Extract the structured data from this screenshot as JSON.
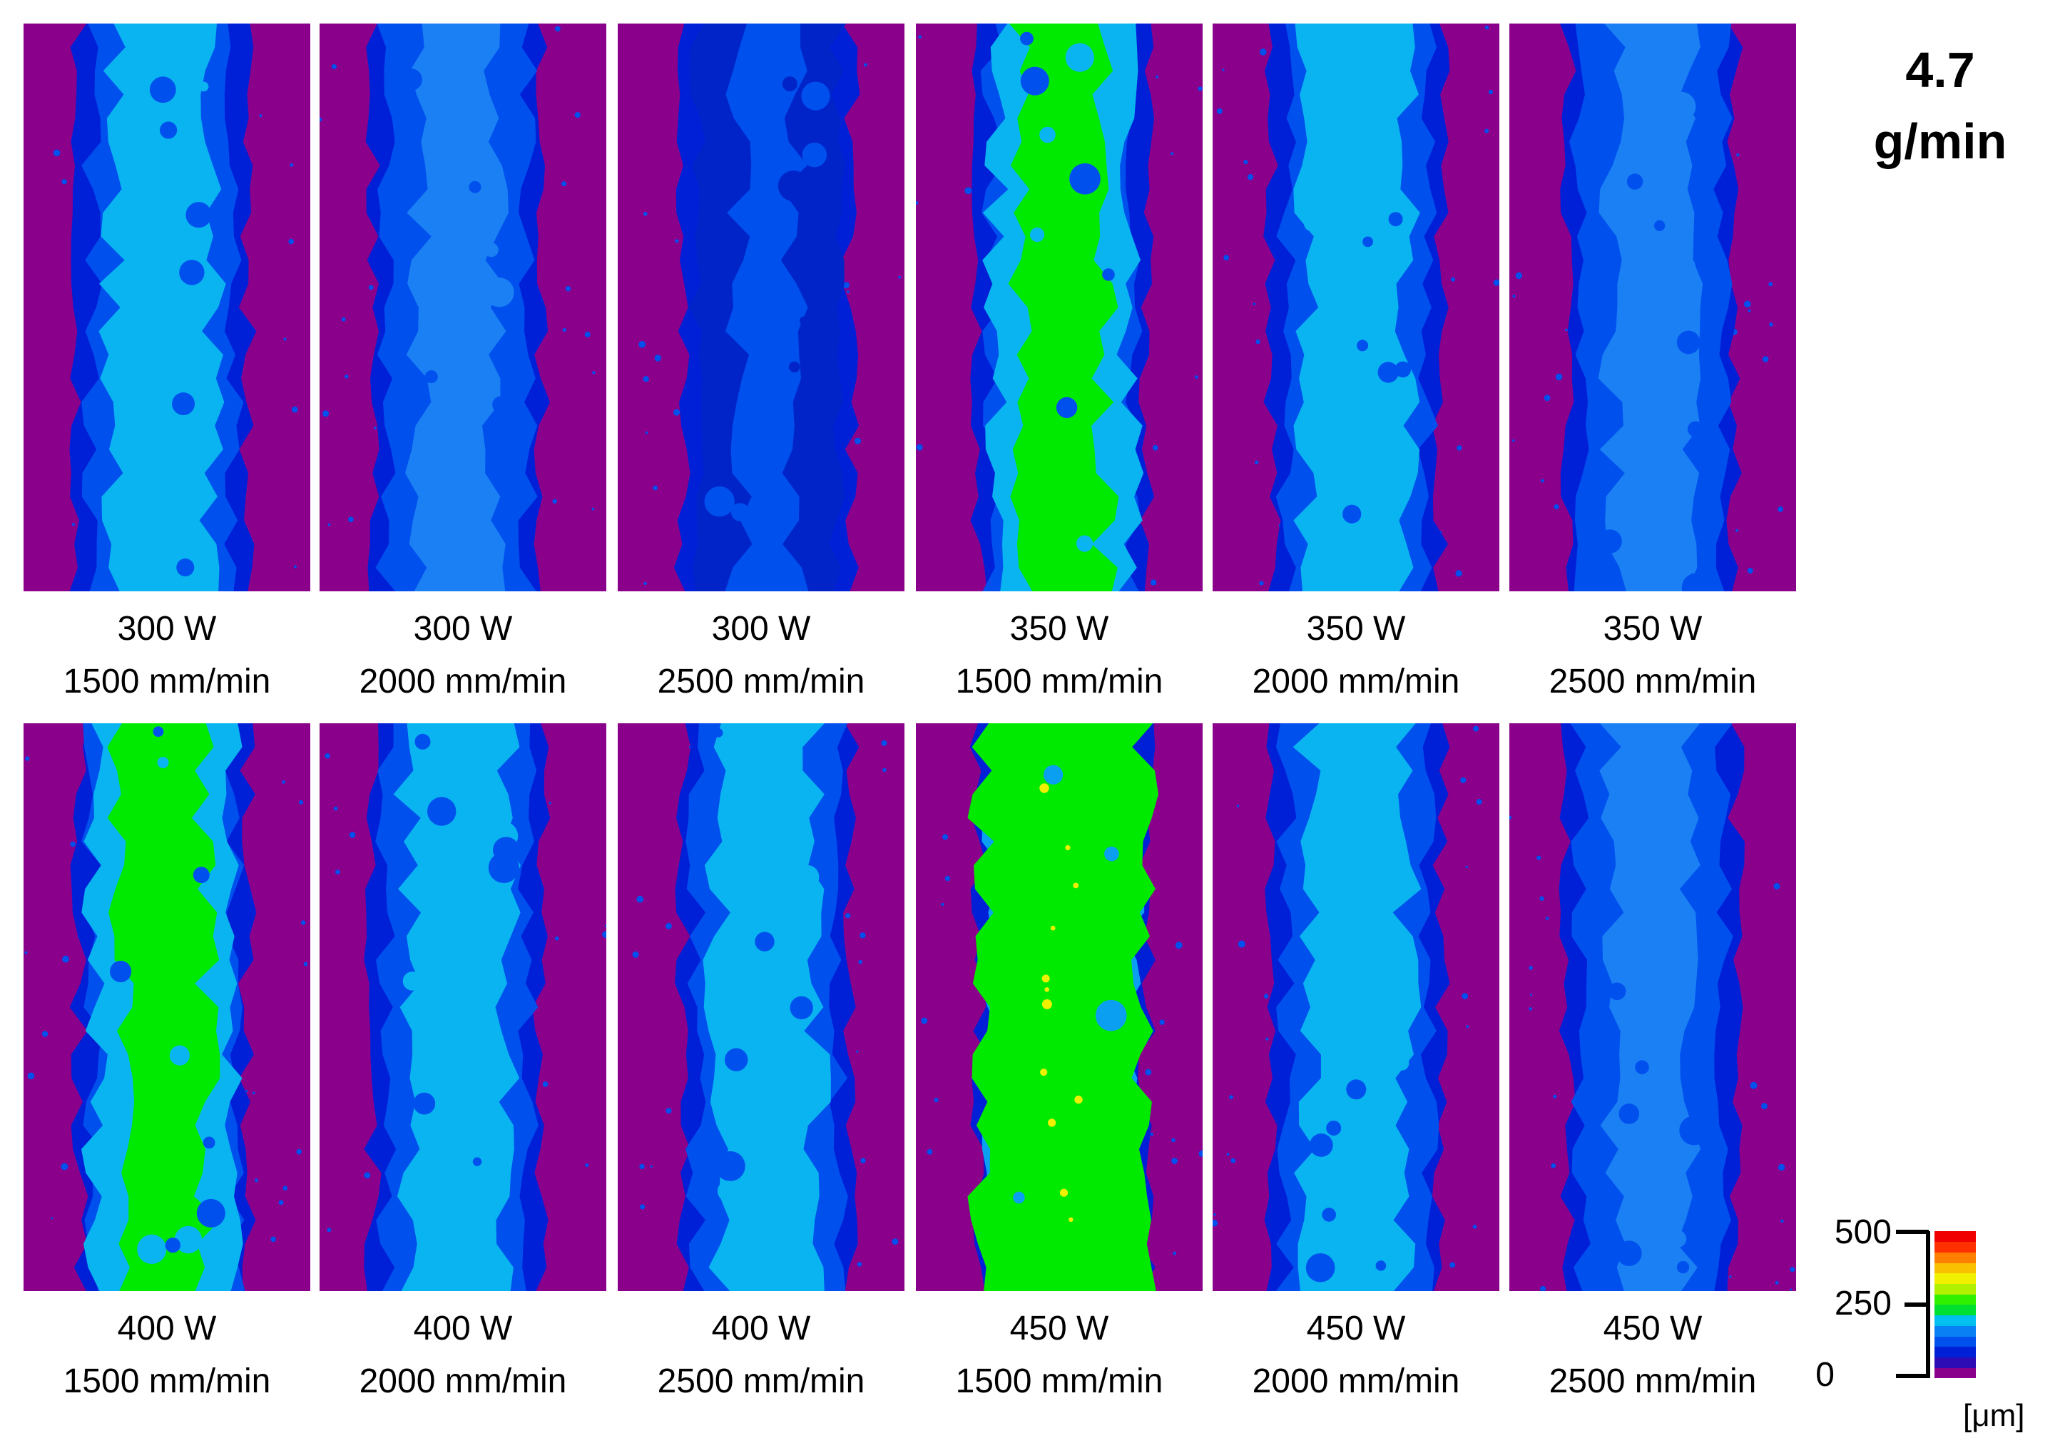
{
  "title": {
    "line1": "4.7",
    "line2": "g/min"
  },
  "panels": [
    {
      "power": "300 W",
      "speed": "1500 mm/min",
      "style": "mid"
    },
    {
      "power": "300 W",
      "speed": "2000 mm/min",
      "style": "low"
    },
    {
      "power": "300 W",
      "speed": "2500 mm/min",
      "style": "lowest"
    },
    {
      "power": "350 W",
      "speed": "1500 mm/min",
      "style": "high"
    },
    {
      "power": "350 W",
      "speed": "2000 mm/min",
      "style": "mid"
    },
    {
      "power": "350 W",
      "speed": "2500 mm/min",
      "style": "low"
    },
    {
      "power": "400 W",
      "speed": "1500 mm/min",
      "style": "high"
    },
    {
      "power": "400 W",
      "speed": "2000 mm/min",
      "style": "mid"
    },
    {
      "power": "400 W",
      "speed": "2500 mm/min",
      "style": "mid"
    },
    {
      "power": "450 W",
      "speed": "1500 mm/min",
      "style": "highest"
    },
    {
      "power": "450 W",
      "speed": "2000 mm/min",
      "style": "mid"
    },
    {
      "power": "450 W",
      "speed": "2500 mm/min",
      "style": "low"
    }
  ],
  "colorbar": {
    "ticks": [
      "500",
      "250",
      "0"
    ],
    "unit": "[μm]",
    "colors": [
      "#8b008b",
      "#2e0cb5",
      "#0020d8",
      "#0050ee",
      "#0a80f5",
      "#00c0f0",
      "#00e030",
      "#30f000",
      "#b0f000",
      "#f0f000",
      "#f8c000",
      "#ff8000",
      "#ff3000",
      "#f00000"
    ]
  },
  "colors": {
    "background": "#8b008b",
    "base": "#0050ee",
    "edge": "#0020d8",
    "mid": "#0ab4f0",
    "high": "#00ea00",
    "peak": "#f0f000"
  }
}
